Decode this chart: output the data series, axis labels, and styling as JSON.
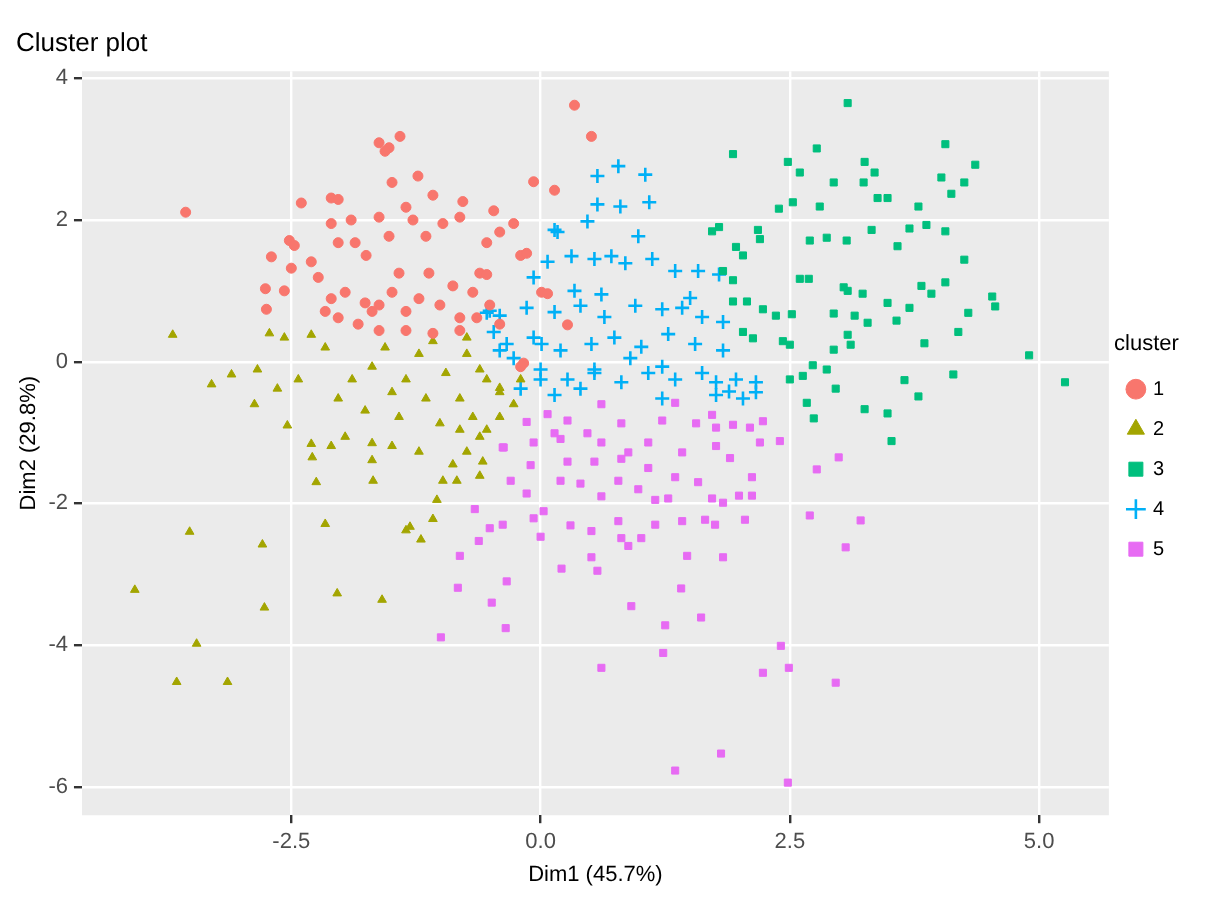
{
  "chart_data": {
    "type": "scatter",
    "title": "Cluster plot",
    "xlabel": "Dim1 (45.7%)",
    "ylabel": "Dim2 (29.8%)",
    "legend_title": "cluster",
    "xlim": [
      -4.6,
      5.7
    ],
    "xticks": [
      -2.5,
      {
        "value": 0,
        "label": "0.0"
      },
      2.5,
      {
        "value": 5,
        "label": "5.0"
      }
    ],
    "ylim": [
      -6.4,
      4.1
    ],
    "yticks": [
      -6,
      -4,
      -2,
      0,
      2,
      4
    ],
    "grid": true,
    "legend": "right",
    "series": [
      {
        "name": "1",
        "color": "#f8766d",
        "marker": "circle",
        "x": [
          -3.56,
          -1.62,
          -1.52,
          -1.41,
          -1.56,
          -1.49,
          -1.23,
          -0.07,
          0.14,
          0.34,
          0.51,
          -2.4,
          -2.1,
          -2.03,
          -2.52,
          -2.47,
          -2.7,
          -2.76,
          -2.75,
          -2.57,
          -2.5,
          -2.3,
          -2.23,
          -2.1,
          -2.03,
          -1.9,
          -1.86,
          -1.75,
          -1.62,
          -1.52,
          -1.35,
          -1.28,
          -1.15,
          -1.08,
          -0.98,
          -0.81,
          -0.78,
          -0.54,
          -0.47,
          -0.41,
          -0.27,
          -0.2,
          -0.14,
          -1.76,
          -1.69,
          -1.62,
          -1.49,
          -1.42,
          -1.35,
          -1.22,
          -1.12,
          -1.01,
          -0.88,
          -0.81,
          -0.68,
          -0.61,
          -0.51,
          -0.41,
          -1.96,
          -2.1,
          -2.16,
          -2.03,
          -1.83,
          -1.62,
          -1.35,
          -1.08,
          -0.81,
          -0.64,
          0.01,
          -0.2,
          0.27,
          -0.54,
          0.07,
          -0.17
        ],
        "values": [
          2.11,
          3.09,
          3.02,
          3.18,
          2.97,
          2.53,
          2.62,
          2.54,
          2.42,
          3.62,
          3.18,
          2.24,
          2.31,
          2.29,
          1.71,
          1.64,
          1.48,
          1.03,
          0.74,
          1.0,
          1.32,
          1.41,
          1.19,
          1.95,
          1.68,
          2.0,
          1.68,
          1.5,
          2.04,
          1.77,
          2.18,
          2.0,
          1.77,
          2.35,
          1.95,
          2.04,
          2.26,
          1.68,
          2.13,
          1.83,
          1.95,
          1.5,
          1.53,
          0.83,
          0.71,
          0.8,
          0.98,
          1.25,
          0.71,
          0.89,
          1.25,
          0.8,
          1.07,
          0.62,
          0.98,
          1.25,
          0.8,
          0.53,
          0.98,
          0.89,
          0.71,
          0.62,
          0.53,
          0.44,
          0.44,
          0.4,
          0.44,
          0.62,
          0.98,
          -0.07,
          0.52,
          1.23,
          0.96,
          -0.02
        ]
      },
      {
        "name": "2",
        "color": "#a3a500",
        "marker": "triangle",
        "x": [
          -4.07,
          -3.69,
          -3.52,
          -3.45,
          -3.65,
          -3.14,
          -3.3,
          -3.1,
          -2.87,
          -2.79,
          -2.77,
          -2.16,
          -2.04,
          -1.59,
          -2.3,
          -2.1,
          -2.29,
          -2.25,
          -1.68,
          -1.69,
          -1.35,
          -1.31,
          -1.2,
          -1.08,
          -1.04,
          -0.98,
          -0.84,
          -0.88,
          -0.74,
          -0.61,
          -0.58,
          -0.54,
          -0.41,
          -2.54,
          -2.57,
          -2.72,
          -2.84,
          -2.64,
          -2.43,
          -2.3,
          -2.16,
          -2.03,
          -1.89,
          -1.76,
          -1.69,
          -1.56,
          -1.49,
          -1.42,
          -1.35,
          -1.22,
          -1.15,
          -1.08,
          -1.01,
          -0.95,
          -0.81,
          -0.74,
          -0.68,
          -0.54,
          -0.41,
          -0.27,
          -0.2,
          -1.96,
          -1.69,
          -1.49,
          -1.22,
          -0.81,
          -0.61,
          -0.74,
          -0.61,
          -0.41
        ],
        "values": [
          -3.22,
          0.38,
          -2.4,
          -3.98,
          -4.52,
          -4.52,
          -0.32,
          -0.18,
          -0.6,
          -2.58,
          -3.47,
          -2.29,
          -3.27,
          -3.36,
          -1.16,
          -1.19,
          -1.35,
          -1.7,
          -1.68,
          -1.39,
          -2.38,
          -2.33,
          -2.51,
          -2.22,
          -1.95,
          -1.68,
          -1.68,
          -1.45,
          -1.27,
          -1.61,
          -1.41,
          -0.96,
          -0.78,
          -0.9,
          0.34,
          0.4,
          -0.11,
          -0.38,
          -0.25,
          0.38,
          0.2,
          -0.52,
          -0.25,
          -0.69,
          -0.07,
          0.2,
          -0.43,
          -0.78,
          -0.25,
          0.11,
          -0.52,
          0.29,
          -0.87,
          -0.16,
          -0.52,
          0.11,
          -0.78,
          -0.25,
          -0.43,
          -0.6,
          -0.25,
          -1.06,
          -1.15,
          -1.19,
          -1.27,
          -0.96,
          -1.06,
          0.34,
          -0.11,
          -0.37
        ]
      },
      {
        "name": "3",
        "color": "#00bf7d",
        "marker": "square",
        "x": [
          3.08,
          1.93,
          2.77,
          2.48,
          2.6,
          3.25,
          3.35,
          3.24,
          3.38,
          3.48,
          2.94,
          4.06,
          4.36,
          4.02,
          4.25,
          4.12,
          2.39,
          2.53,
          2.8,
          3.79,
          1.72,
          1.79,
          2.18,
          2.2,
          1.96,
          2.03,
          2.7,
          2.87,
          3.07,
          3.32,
          3.58,
          3.7,
          3.87,
          4.06,
          4.25,
          1.83,
          1.93,
          2.6,
          2.69,
          3.04,
          3.08,
          3.23,
          3.48,
          3.82,
          3.92,
          4.06,
          4.53,
          4.56,
          1.93,
          2.07,
          2.23,
          2.36,
          2.52,
          2.94,
          3.15,
          3.28,
          3.57,
          3.7,
          4.19,
          4.29,
          2.03,
          2.13,
          2.43,
          2.5,
          3.08,
          3.11,
          2.94,
          3.85,
          4.9,
          5.26,
          2.5,
          2.63,
          2.73,
          2.87,
          2.96,
          3.65,
          4.14,
          3.79,
          3.25,
          3.48,
          2.74,
          2.67,
          3.52
        ],
        "values": [
          3.65,
          2.93,
          3.01,
          2.82,
          2.67,
          2.82,
          2.67,
          2.53,
          2.31,
          2.31,
          2.53,
          3.07,
          2.78,
          2.6,
          2.53,
          2.37,
          2.16,
          2.25,
          2.19,
          2.19,
          1.84,
          1.9,
          1.86,
          1.73,
          1.62,
          1.5,
          1.71,
          1.75,
          1.71,
          1.86,
          1.63,
          1.88,
          1.93,
          1.84,
          1.44,
          1.28,
          1.15,
          1.17,
          1.17,
          1.05,
          1.0,
          0.96,
          0.83,
          1.07,
          0.96,
          1.12,
          0.92,
          0.78,
          0.85,
          0.85,
          0.74,
          0.65,
          0.67,
          0.68,
          0.65,
          0.55,
          0.58,
          0.76,
          0.42,
          0.69,
          0.42,
          0.33,
          0.29,
          0.24,
          0.38,
          0.24,
          0.17,
          0.26,
          0.09,
          -0.29,
          -0.25,
          -0.2,
          -0.05,
          -0.11,
          -0.38,
          -0.26,
          -0.18,
          -0.49,
          -0.67,
          -0.73,
          -0.8,
          -0.58,
          -1.12
        ]
      },
      {
        "name": "4",
        "color": "#00b0f6",
        "marker": "cross",
        "x": [
          0.78,
          0.57,
          1.05,
          0.57,
          0.8,
          1.09,
          0.47,
          0.17,
          0.98,
          0.07,
          0.31,
          0.54,
          0.71,
          0.85,
          1.12,
          1.35,
          1.58,
          1.79,
          -0.07,
          -0.41,
          -0.51,
          -0.14,
          0.14,
          0.4,
          0.64,
          0.95,
          1.22,
          1.42,
          1.62,
          1.83,
          -0.34,
          -0.07,
          0.2,
          0.51,
          0.74,
          1.01,
          1.28,
          1.55,
          1.83,
          0.0,
          0.27,
          0.54,
          0.81,
          1.08,
          1.35,
          1.62,
          1.96,
          2.16,
          -0.2,
          0.14,
          0.4,
          1.22,
          1.76,
          2.03,
          1.89,
          -0.54,
          -0.47,
          -0.41,
          0.14,
          0.01,
          0.0,
          0.54,
          1.22,
          2.16,
          1.76,
          0.34,
          0.61,
          1.5,
          -0.27,
          0.9
        ],
        "values": [
          2.76,
          2.62,
          2.64,
          2.22,
          2.19,
          2.25,
          1.98,
          1.83,
          1.77,
          1.41,
          1.49,
          1.45,
          1.49,
          1.39,
          1.45,
          1.28,
          1.28,
          1.23,
          1.19,
          0.65,
          0.72,
          0.76,
          0.7,
          0.79,
          0.63,
          0.79,
          0.74,
          0.76,
          0.63,
          0.56,
          0.25,
          0.34,
          0.16,
          0.25,
          0.34,
          0.21,
          0.39,
          0.25,
          0.16,
          -0.11,
          -0.25,
          -0.16,
          -0.29,
          -0.16,
          -0.25,
          -0.16,
          -0.25,
          -0.29,
          -0.38,
          -0.47,
          -0.38,
          -0.52,
          -0.47,
          -0.52,
          -0.42,
          0.69,
          0.42,
          0.16,
          1.86,
          0.25,
          -0.25,
          -0.11,
          -0.07,
          -0.43,
          -0.29,
          1.0,
          0.95,
          0.9,
          0.05,
          0.05
        ]
      },
      {
        "name": "5",
        "color": "#e76bf3",
        "marker": "square",
        "x": [
          0.61,
          1.35,
          0.81,
          1.22,
          1.56,
          1.76,
          1.93,
          2.1,
          2.23,
          2.4,
          2.2,
          1.72,
          0.27,
          0.47,
          0.07,
          -0.14,
          -0.07,
          -0.38,
          0.2,
          0.61,
          0.88,
          1.08,
          1.42,
          1.76,
          1.9,
          0.27,
          0.54,
          0.81,
          1.08,
          1.35,
          1.58,
          2.12,
          2.77,
          2.99,
          -0.3,
          0.2,
          0.4,
          0.61,
          0.78,
          0.98,
          1.15,
          1.28,
          1.72,
          1.99,
          2.12,
          1.83,
          -0.14,
          0.03,
          -0.07,
          0.3,
          0.51,
          0.78,
          1.01,
          1.15,
          1.42,
          1.65,
          1.75,
          2.05,
          2.7,
          3.21,
          3.06,
          0.0,
          -0.51,
          -0.38,
          -0.62,
          0.81,
          0.88,
          0.51,
          0.57,
          0.21,
          1.47,
          1.83,
          -0.34,
          -0.49,
          -0.35,
          0.91,
          1.41,
          1.61,
          1.25,
          1.23,
          0.61,
          2.41,
          2.23,
          2.49,
          2.96,
          1.81,
          1.35,
          2.48,
          -0.37,
          -0.81,
          -0.83,
          -1.0,
          -0.66,
          -0.1,
          0.14
        ],
        "values": [
          -0.6,
          -0.58,
          -0.87,
          -0.83,
          -0.87,
          -0.93,
          -0.89,
          -0.93,
          -0.84,
          -1.12,
          -1.14,
          -0.75,
          -0.83,
          -1.01,
          -0.74,
          -0.85,
          -1.14,
          -1.21,
          -1.09,
          -1.14,
          -1.28,
          -1.14,
          -1.28,
          -1.19,
          -1.36,
          -1.41,
          -1.41,
          -1.37,
          -1.5,
          -1.63,
          -1.7,
          -1.63,
          -1.52,
          -1.35,
          -1.68,
          -1.68,
          -1.72,
          -1.9,
          -1.68,
          -1.8,
          -1.95,
          -1.93,
          -1.93,
          -1.89,
          -1.89,
          -1.99,
          -1.86,
          -2.11,
          -2.21,
          -2.31,
          -2.39,
          -2.25,
          -2.49,
          -2.3,
          -2.25,
          -2.23,
          -2.3,
          -2.23,
          -2.17,
          -2.24,
          -2.62,
          -2.47,
          -2.35,
          -2.3,
          -2.53,
          -2.49,
          -2.6,
          -2.76,
          -2.95,
          -2.92,
          -2.74,
          -2.76,
          -3.1,
          -3.4,
          -3.76,
          -3.45,
          -3.2,
          -3.61,
          -3.72,
          -4.11,
          -4.32,
          -4.01,
          -4.39,
          -4.32,
          -4.53,
          -5.53,
          -5.77,
          -5.94,
          -1.21,
          -2.74,
          -3.19,
          -3.89,
          -2.08,
          -1.46,
          -1.01
        ]
      }
    ]
  }
}
